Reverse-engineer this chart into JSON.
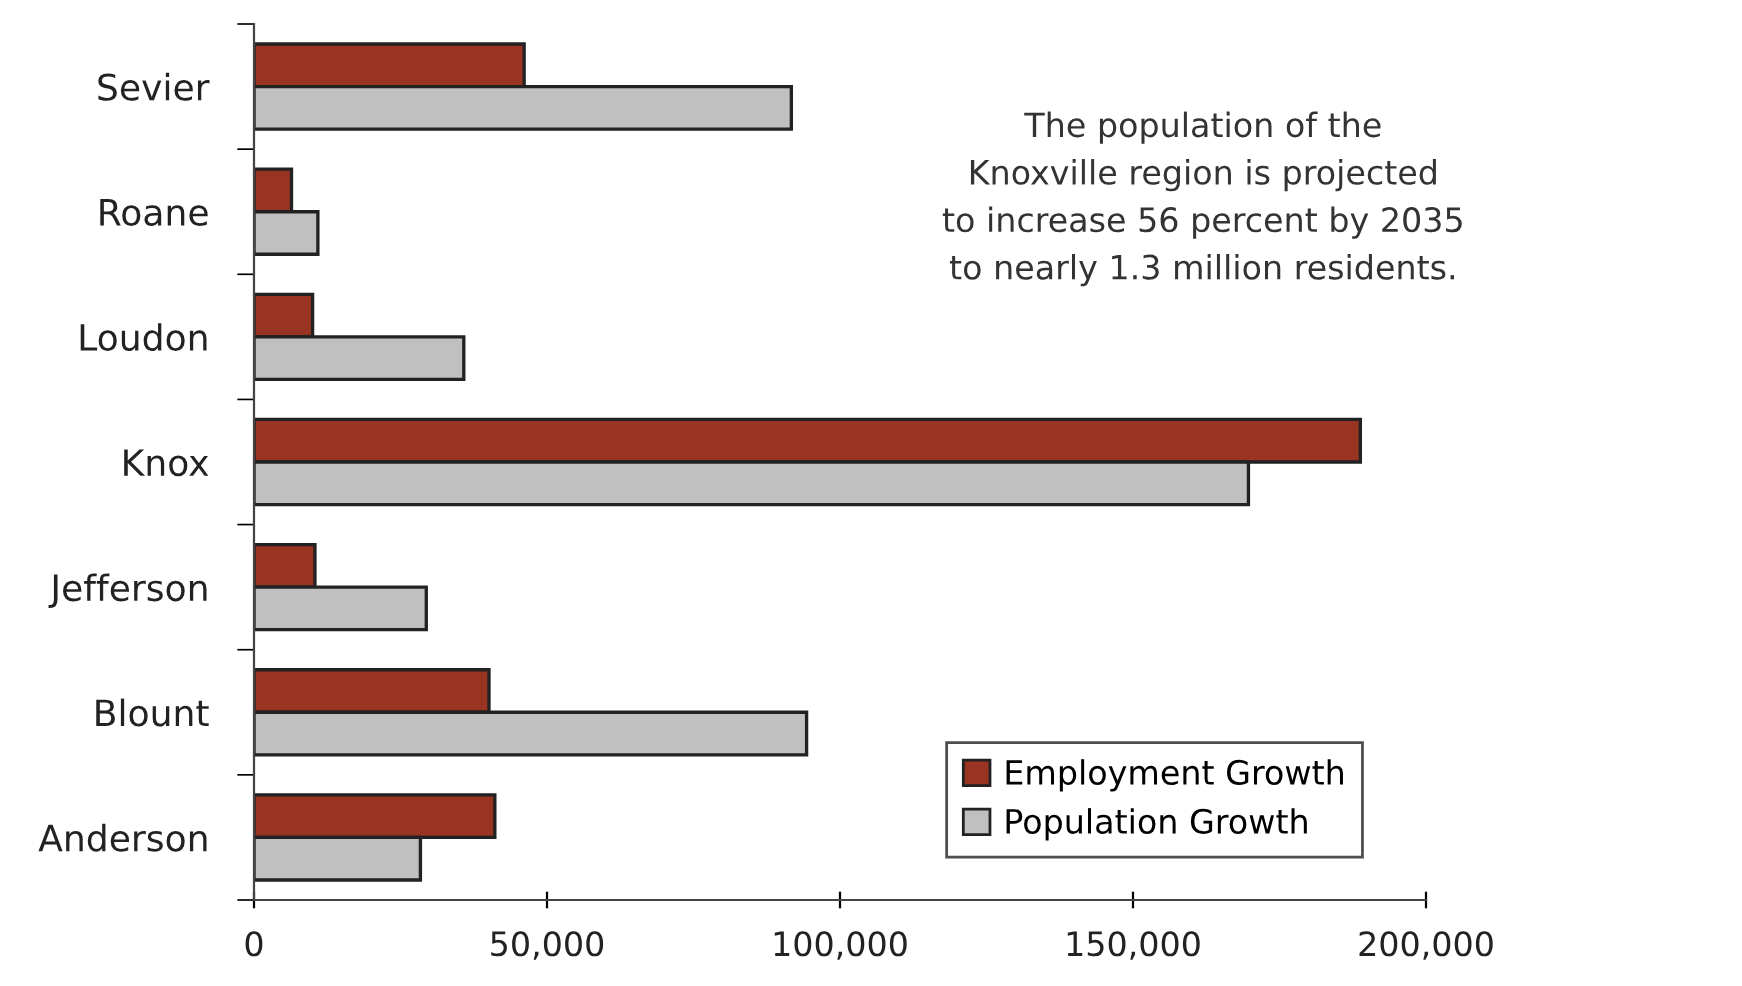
{
  "chart_data": {
    "type": "bar",
    "orientation": "horizontal",
    "categories": [
      "Sevier",
      "Roane",
      "Loudon",
      "Knox",
      "Jefferson",
      "Blount",
      "Anderson"
    ],
    "series": [
      {
        "name": "Employment Growth",
        "color": "#993322",
        "values": [
          46100,
          6400,
          10000,
          188800,
          10400,
          40100,
          41100
        ]
      },
      {
        "name": "Population Growth",
        "color": "#c0c0c0",
        "values": [
          91700,
          10900,
          35800,
          169700,
          29400,
          94300,
          28400
        ]
      }
    ],
    "xlim": [
      0,
      200000
    ],
    "xticks": [
      {
        "value": 0,
        "label": "0"
      },
      {
        "value": 50000,
        "label": "50,000"
      },
      {
        "value": 100000,
        "label": "100,000"
      },
      {
        "value": 150000,
        "label": "150,000"
      },
      {
        "value": 200000,
        "label": "200,000"
      }
    ],
    "annotations": [
      "The population of the\nKnoxville region is projected\nto increase 56 percent by 2035\nto nearly 1.3 million residents."
    ],
    "legend": "bottom right",
    "grid": false
  }
}
